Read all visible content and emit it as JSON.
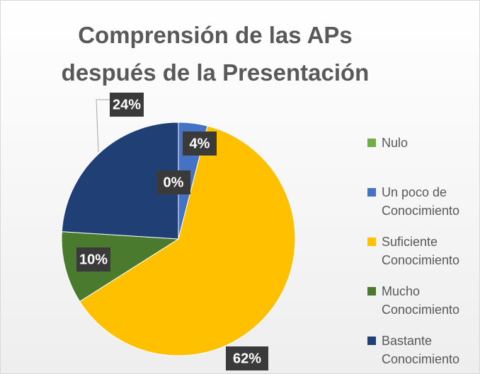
{
  "chart_data": {
    "type": "pie",
    "title": [
      "Comprensión de las APs",
      "después de la Presentación"
    ],
    "categories": [
      "Nulo",
      "Un poco de Conocimiento",
      "Suficiente Conocimiento",
      "Mucho Conocimiento",
      "Bastante Conocimiento"
    ],
    "values": [
      0,
      4,
      62,
      10,
      24
    ],
    "value_labels": [
      "0%",
      "4%",
      "62%",
      "10%",
      "24%"
    ],
    "colors": [
      "#70ad47",
      "#4472c4",
      "#ffc000",
      "#4a7a2e",
      "#203f74"
    ],
    "legend": "right"
  }
}
